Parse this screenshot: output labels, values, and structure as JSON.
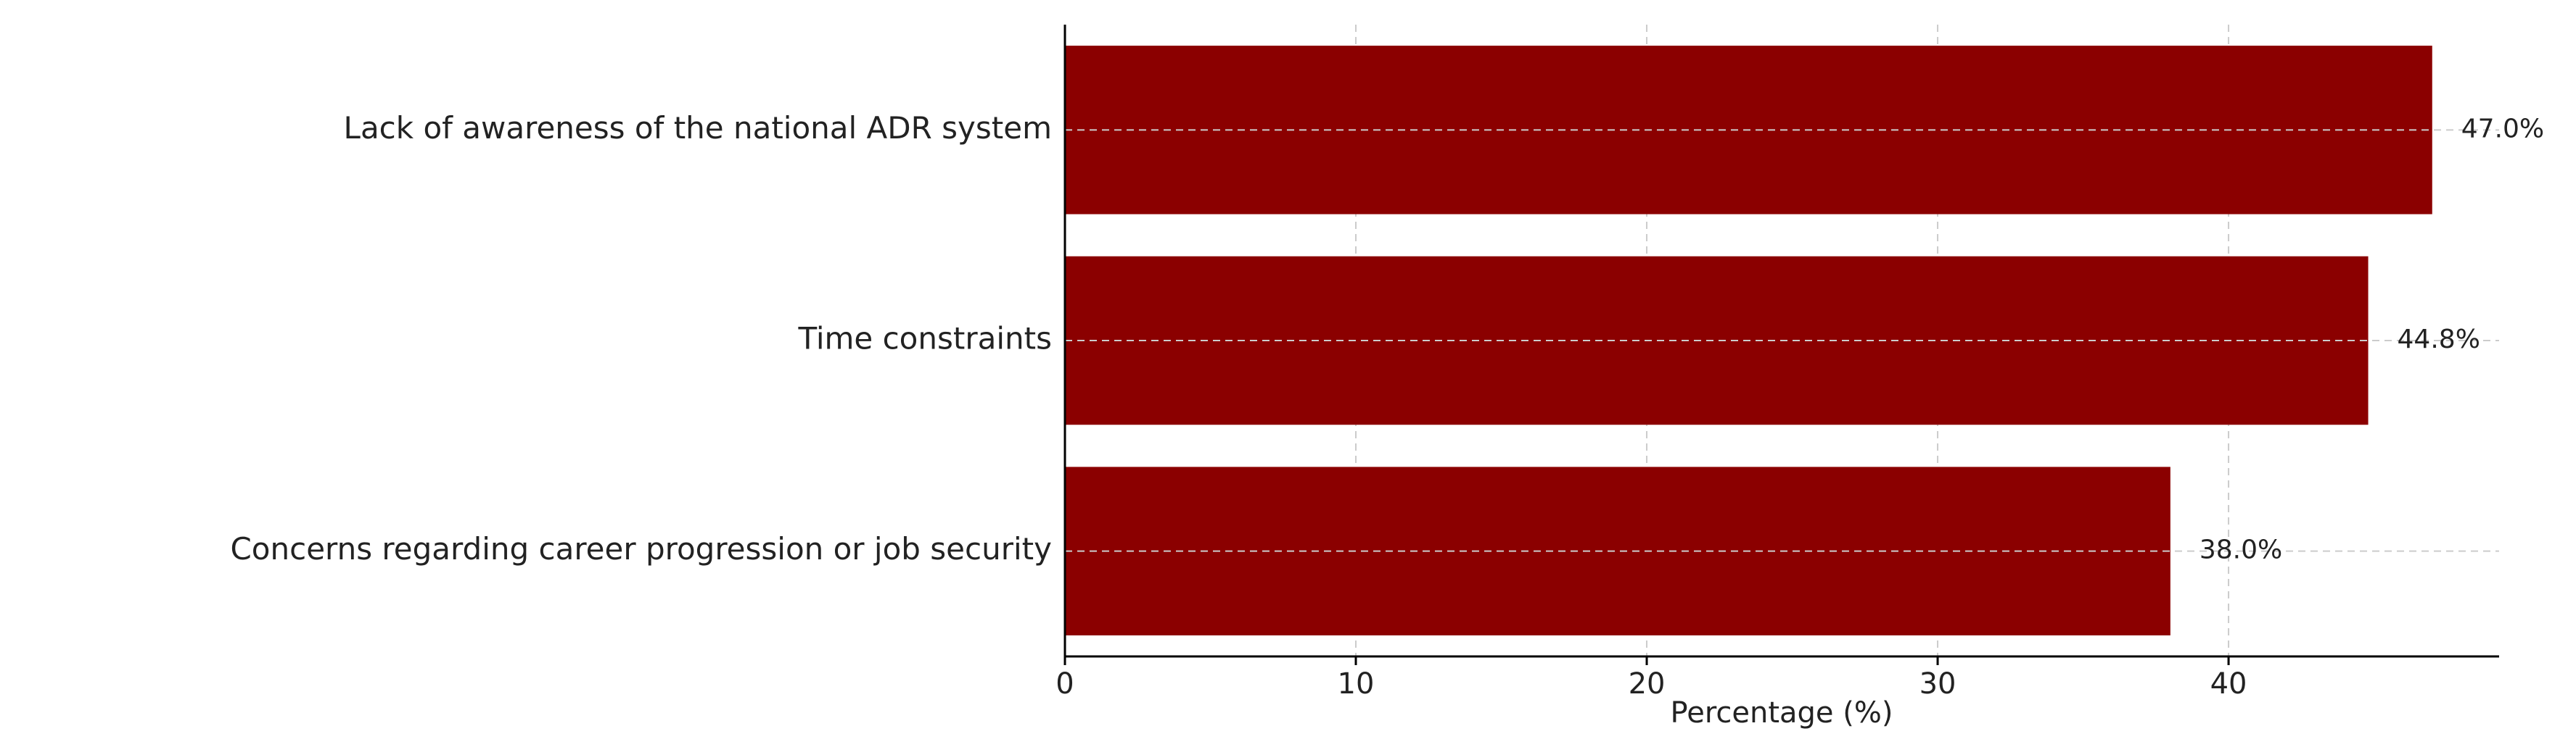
{
  "chart_data": {
    "type": "barh",
    "xlabel": "Percentage (%)",
    "categories": [
      "Lack of awareness of the national ADR system",
      "Time constraints",
      "Concerns regarding career progression or job security"
    ],
    "values": [
      47.0,
      44.8,
      38.0
    ],
    "value_labels": [
      "47.0%",
      "44.8%",
      "38.0%"
    ],
    "color": "#8b0000",
    "xlim": [
      0,
      49.3
    ],
    "xticks": [
      0,
      10,
      20,
      30,
      40
    ],
    "grid": true
  }
}
